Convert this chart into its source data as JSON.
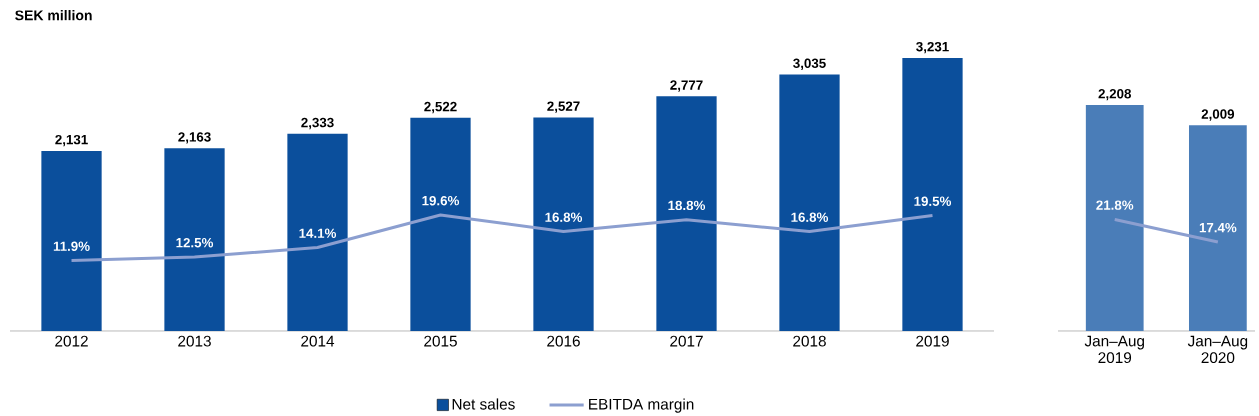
{
  "chart_data": [
    {
      "type": "bar",
      "title": "SEK million",
      "categories": [
        "2012",
        "2013",
        "2014",
        "2015",
        "2016",
        "2017",
        "2018",
        "2019"
      ],
      "series": [
        {
          "name": "Net sales",
          "color": "#0b4f9c",
          "values": [
            2131,
            2163,
            2333,
            2522,
            2527,
            2777,
            3035,
            3231
          ],
          "value_labels": [
            "2,131",
            "2,163",
            "2,333",
            "2,522",
            "2,527",
            "2,777",
            "3,035",
            "3,231"
          ]
        },
        {
          "name": "EBITDA margin",
          "type": "line",
          "axis": "y2",
          "color": "#8c9fd0",
          "values": [
            11.9,
            12.5,
            14.1,
            19.6,
            16.8,
            18.8,
            16.8,
            19.5
          ],
          "value_labels": [
            "11.9%",
            "12.5%",
            "14.1%",
            "19.6%",
            "16.8%",
            "18.8%",
            "16.8%",
            "19.5%"
          ]
        }
      ],
      "tick_labels": "x",
      "legend": "bottom"
    },
    {
      "type": "bar",
      "categories": [
        "Jan–Aug 2019",
        "Jan–Aug 2020"
      ],
      "series": [
        {
          "color": "#4a7db8",
          "values": [
            2208,
            2009
          ],
          "value_labels": [
            "2,208",
            "2,009"
          ]
        },
        {
          "type": "line",
          "axis": "y2",
          "color": "#8c9fd0",
          "values": [
            21.8,
            17.4
          ],
          "value_labels": [
            "21.8%",
            "17.4%"
          ]
        }
      ],
      "tick_labels": "x"
    }
  ]
}
